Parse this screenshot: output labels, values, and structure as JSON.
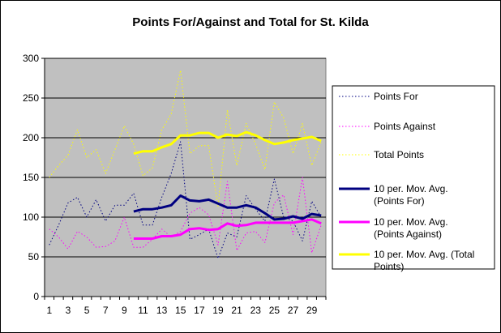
{
  "chart_data": {
    "type": "line",
    "title": "Points For/Against and Total for St. Kilda",
    "xlabel": "",
    "ylabel": "",
    "xlim": [
      1,
      30
    ],
    "ylim": [
      0,
      300
    ],
    "yticks": [
      0,
      50,
      100,
      150,
      200,
      250,
      300
    ],
    "x": [
      1,
      2,
      3,
      4,
      5,
      6,
      7,
      8,
      9,
      10,
      11,
      12,
      13,
      14,
      15,
      16,
      17,
      18,
      19,
      20,
      21,
      22,
      23,
      24,
      25,
      26,
      27,
      28,
      29,
      30
    ],
    "grid": "horizontal",
    "legend_position": "right",
    "plot_background": "#c0c0c0",
    "series": [
      {
        "name": "Points For",
        "style": "dotted",
        "color": "#000080",
        "values": [
          65,
          90,
          118,
          125,
          100,
          122,
          95,
          115,
          115,
          130,
          90,
          90,
          125,
          155,
          195,
          72,
          78,
          85,
          48,
          80,
          75,
          127,
          110,
          95,
          148,
          100,
          95,
          70,
          120,
          100
        ]
      },
      {
        "name": "Points Against",
        "style": "dotted",
        "color": "#ff00ff",
        "values": [
          85,
          75,
          60,
          82,
          75,
          62,
          63,
          70,
          100,
          62,
          62,
          72,
          85,
          75,
          82,
          105,
          112,
          103,
          65,
          145,
          58,
          80,
          82,
          68,
          118,
          128,
          78,
          150,
          55,
          90
        ]
      },
      {
        "name": "Total Points",
        "style": "dotted",
        "color": "#ffff00",
        "values": [
          150,
          165,
          178,
          210,
          175,
          185,
          155,
          185,
          215,
          192,
          152,
          162,
          210,
          230,
          285,
          180,
          190,
          190,
          113,
          235,
          165,
          218,
          192,
          160,
          245,
          225,
          180,
          218,
          165,
          195
        ]
      },
      {
        "name": "10 per. Mov. Avg. (Points For)",
        "style": "solid",
        "color": "#000080",
        "values": [
          null,
          null,
          null,
          null,
          null,
          null,
          null,
          null,
          null,
          107,
          110,
          110,
          112,
          115,
          127,
          121,
          120,
          122,
          117,
          112,
          112,
          115,
          112,
          105,
          97,
          98,
          101,
          98,
          104,
          102
        ]
      },
      {
        "name": "10 per. Mov. Avg. (Points Against)",
        "style": "solid",
        "color": "#ff00ff",
        "values": [
          null,
          null,
          null,
          null,
          null,
          null,
          null,
          null,
          null,
          73,
          73,
          73,
          76,
          76,
          78,
          85,
          86,
          84,
          85,
          92,
          89,
          90,
          93,
          93,
          93,
          93,
          93,
          95,
          97,
          92
        ]
      },
      {
        "name": "10 per. Mov. Avg. (Total Points)",
        "style": "solid",
        "color": "#ffff00",
        "values": [
          null,
          null,
          null,
          null,
          null,
          null,
          null,
          null,
          null,
          180,
          183,
          183,
          188,
          192,
          203,
          203,
          206,
          206,
          200,
          204,
          202,
          207,
          203,
          197,
          192,
          194,
          197,
          199,
          201,
          196
        ]
      }
    ]
  }
}
